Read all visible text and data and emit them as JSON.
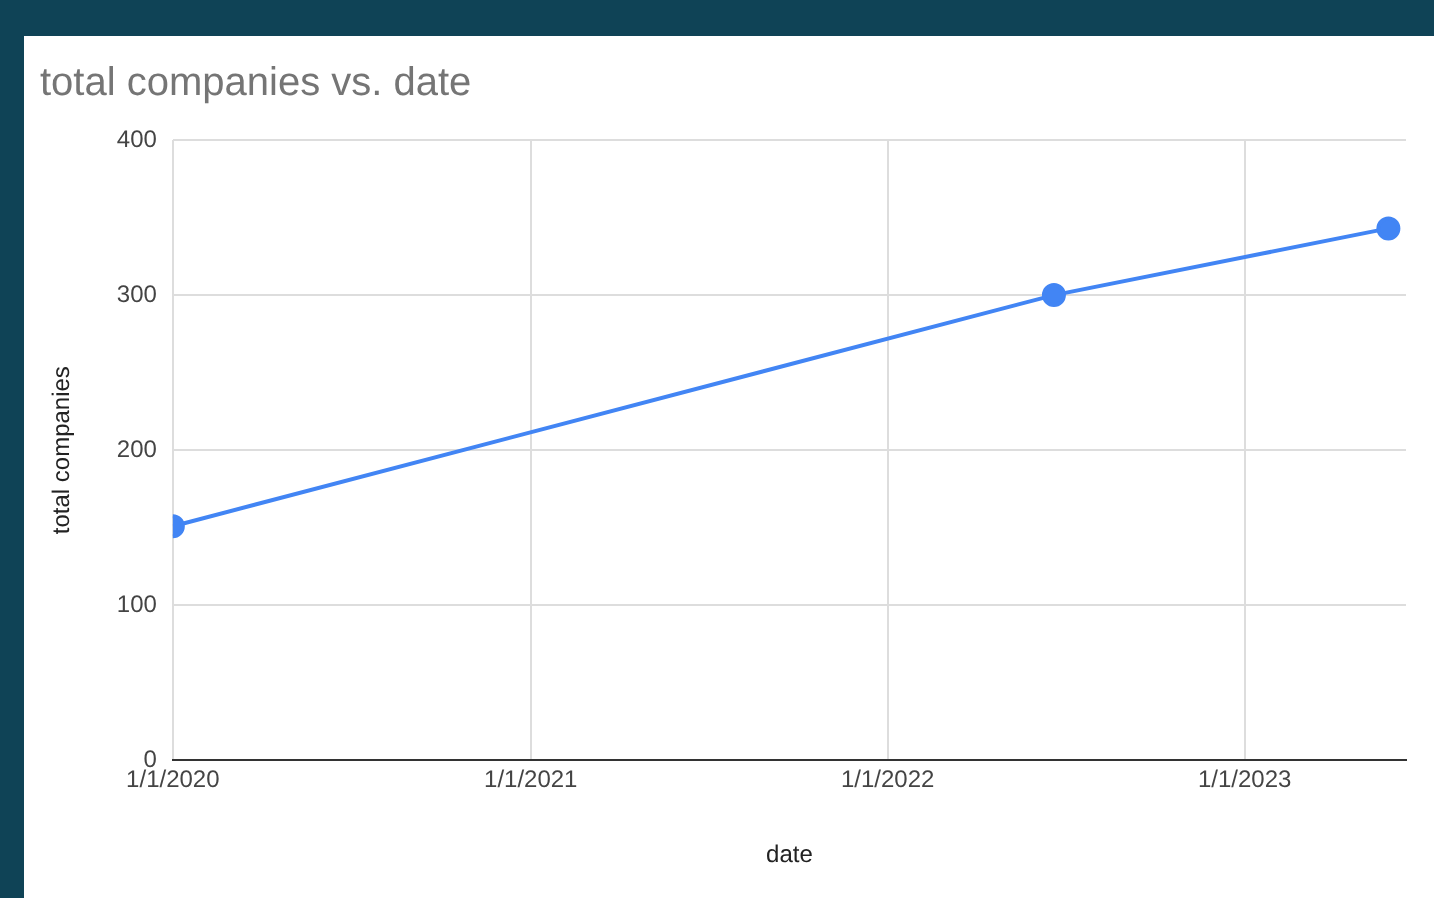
{
  "chart_data": {
    "type": "line",
    "title": "total companies vs. date",
    "xlabel": "date",
    "ylabel": "total companies",
    "x": [
      "2020-01-01",
      "2022-06-20",
      "2023-05-28"
    ],
    "series": [
      {
        "color": "#4285f4",
        "values": [
          151,
          300,
          343
        ]
      }
    ],
    "xlim": [
      "2020-01-01",
      "2023-06-15"
    ],
    "xticks": [
      {
        "value": "2020-01-01",
        "label": "1/1/2020"
      },
      {
        "value": "2021-01-01",
        "label": "1/1/2021"
      },
      {
        "value": "2022-01-01",
        "label": "1/1/2022"
      },
      {
        "value": "2023-01-01",
        "label": "1/1/2023"
      }
    ],
    "ylim": [
      0,
      400
    ],
    "yticks": [
      0,
      100,
      200,
      300,
      400
    ],
    "grid": true,
    "legend": false,
    "marker": "circle",
    "line_style": "solid"
  }
}
